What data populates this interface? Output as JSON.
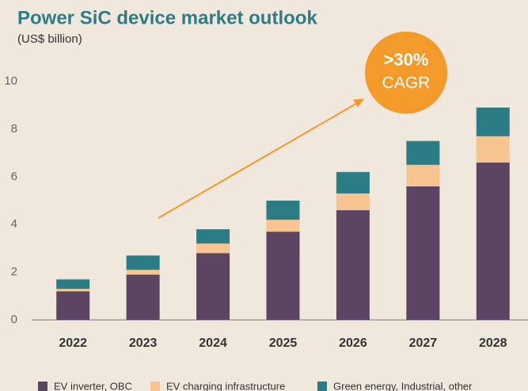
{
  "chart_data": {
    "type": "stacked_bar",
    "title": "Power SiC device market outlook",
    "subtitle": "(US$ billion)",
    "annotations": [
      ">30%",
      "CAGR"
    ],
    "categories": [
      "2022",
      "2023",
      "2024",
      "2025",
      "2026",
      "2027",
      "2028"
    ],
    "series": [
      {
        "name": "EV inverter, OBC",
        "color": "#5c4563",
        "values": [
          1.2,
          1.9,
          2.8,
          3.7,
          4.6,
          5.6,
          6.6
        ]
      },
      {
        "name": "EV charging infrastructure",
        "color": "#f8c48f",
        "values": [
          0.1,
          0.2,
          0.4,
          0.5,
          0.7,
          0.9,
          1.1
        ]
      },
      {
        "name": "Green energy, Industrial, other",
        "color": "#2b7c84",
        "values": [
          0.4,
          0.6,
          0.6,
          0.8,
          0.9,
          1.0,
          1.2
        ]
      }
    ],
    "ylim": [
      0,
      10
    ],
    "yticks": [
      0,
      2,
      4,
      6,
      8,
      10
    ],
    "grid": false,
    "legend": "bottom"
  }
}
